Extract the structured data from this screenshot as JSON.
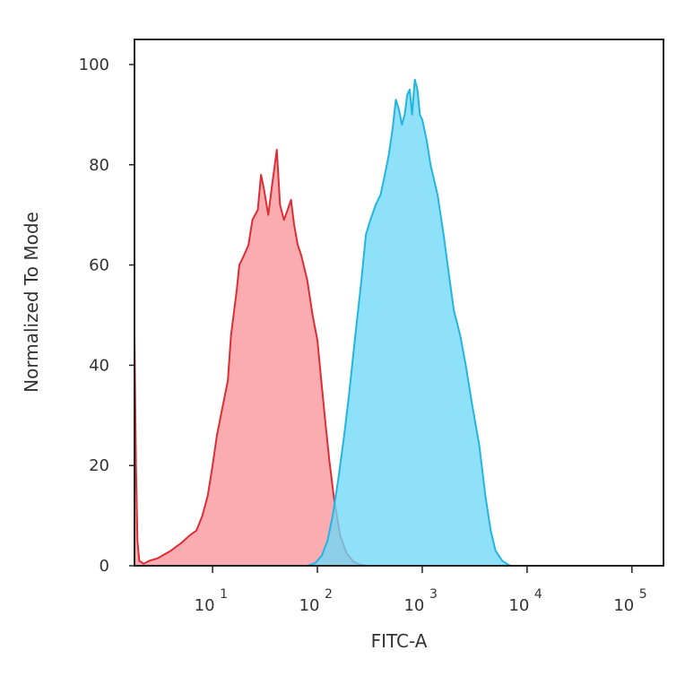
{
  "chart_data": {
    "type": "area",
    "title": "",
    "xlabel": "FITC-A",
    "ylabel": "Normalized To Mode",
    "x_scale": "log",
    "xlim": [
      1.8,
      200000
    ],
    "ylim": [
      0,
      105
    ],
    "x_ticks": [
      {
        "base": "10",
        "exp": "1",
        "value": 10
      },
      {
        "base": "10",
        "exp": "2",
        "value": 100
      },
      {
        "base": "10",
        "exp": "3",
        "value": 1000
      },
      {
        "base": "10",
        "exp": "4",
        "value": 10000
      },
      {
        "base": "10",
        "exp": "5",
        "value": 100000
      }
    ],
    "y_ticks": [
      {
        "label": "0",
        "value": 0
      },
      {
        "label": "20",
        "value": 20
      },
      {
        "label": "40",
        "value": 40
      },
      {
        "label": "60",
        "value": 60
      },
      {
        "label": "80",
        "value": 80
      },
      {
        "label": "100",
        "value": 100
      }
    ],
    "grid": false,
    "legend": "none",
    "series": [
      {
        "color_fill": "#f77f86",
        "color_line": "#dd2e36",
        "fill_opacity": 0.65,
        "points": [
          [
            1.8,
            46
          ],
          [
            1.86,
            20
          ],
          [
            1.92,
            5
          ],
          [
            2.0,
            1
          ],
          [
            2.2,
            0.4
          ],
          [
            2.5,
            1
          ],
          [
            3,
            1.5
          ],
          [
            4,
            3
          ],
          [
            5,
            4.5
          ],
          [
            6,
            6
          ],
          [
            7,
            7
          ],
          [
            8,
            10
          ],
          [
            9,
            14
          ],
          [
            10,
            20
          ],
          [
            11,
            26
          ],
          [
            12,
            30
          ],
          [
            14,
            37
          ],
          [
            15,
            46
          ],
          [
            17,
            55
          ],
          [
            18,
            60
          ],
          [
            20,
            62
          ],
          [
            22,
            64
          ],
          [
            24,
            69
          ],
          [
            27,
            71
          ],
          [
            29,
            78
          ],
          [
            31,
            75
          ],
          [
            34,
            70
          ],
          [
            37,
            76
          ],
          [
            41,
            83
          ],
          [
            44,
            72
          ],
          [
            48,
            69
          ],
          [
            52,
            71
          ],
          [
            56,
            73
          ],
          [
            60,
            68
          ],
          [
            65,
            64
          ],
          [
            70,
            62
          ],
          [
            80,
            57
          ],
          [
            90,
            50
          ],
          [
            100,
            45
          ],
          [
            110,
            36
          ],
          [
            120,
            28
          ],
          [
            130,
            21
          ],
          [
            145,
            13
          ],
          [
            165,
            6
          ],
          [
            190,
            2.5
          ],
          [
            220,
            0.8
          ],
          [
            260,
            0.2
          ],
          [
            300,
            0
          ]
        ]
      },
      {
        "color_fill": "#6ed9f7",
        "color_line": "#22b5e3",
        "fill_opacity": 0.78,
        "points": [
          [
            80,
            0
          ],
          [
            95,
            0.5
          ],
          [
            110,
            2
          ],
          [
            125,
            5
          ],
          [
            140,
            10
          ],
          [
            160,
            18
          ],
          [
            180,
            26
          ],
          [
            200,
            34
          ],
          [
            230,
            46
          ],
          [
            260,
            56
          ],
          [
            290,
            66
          ],
          [
            320,
            69
          ],
          [
            360,
            72
          ],
          [
            400,
            74
          ],
          [
            440,
            78
          ],
          [
            480,
            82
          ],
          [
            520,
            87
          ],
          [
            560,
            93
          ],
          [
            600,
            91
          ],
          [
            640,
            88
          ],
          [
            680,
            90
          ],
          [
            720,
            94
          ],
          [
            760,
            95
          ],
          [
            800,
            90
          ],
          [
            850,
            97
          ],
          [
            900,
            95
          ],
          [
            950,
            90
          ],
          [
            1000,
            89
          ],
          [
            1100,
            85
          ],
          [
            1200,
            80
          ],
          [
            1400,
            74
          ],
          [
            1600,
            66
          ],
          [
            1800,
            58
          ],
          [
            2000,
            51
          ],
          [
            2300,
            46
          ],
          [
            2600,
            40
          ],
          [
            3000,
            32
          ],
          [
            3500,
            24
          ],
          [
            4000,
            14
          ],
          [
            4500,
            7
          ],
          [
            5000,
            3
          ],
          [
            5800,
            1
          ],
          [
            6500,
            0.3
          ],
          [
            7000,
            0
          ]
        ]
      }
    ]
  }
}
